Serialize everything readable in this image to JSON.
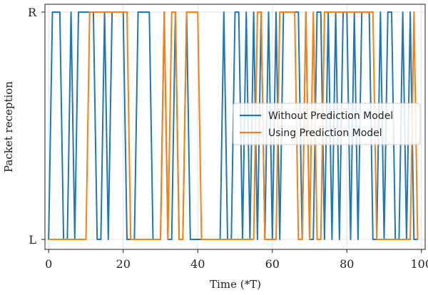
{
  "chart_data": {
    "type": "line",
    "xlabel": "Time (*T)",
    "ylabel": "Packet reception",
    "xlim": [
      -1,
      101
    ],
    "x_ticks": [
      0,
      20,
      40,
      60,
      80,
      100
    ],
    "y_categories": [
      "L",
      "R"
    ],
    "grid": true,
    "legend_position": "center-right",
    "series": [
      {
        "name": "Without Prediction Model",
        "color": "#1f77b4",
        "x": [
          0,
          1,
          2,
          3,
          4,
          5,
          6,
          7,
          8,
          9,
          10,
          11,
          12,
          13,
          14,
          15,
          16,
          17,
          18,
          19,
          20,
          21,
          22,
          23,
          24,
          25,
          26,
          27,
          28,
          29,
          30,
          31,
          32,
          33,
          34,
          35,
          36,
          37,
          38,
          39,
          40,
          41,
          42,
          43,
          44,
          45,
          46,
          47,
          48,
          49,
          50,
          51,
          52,
          53,
          54,
          55,
          56,
          57,
          58,
          59,
          60,
          61,
          62,
          63,
          64,
          65,
          66,
          67,
          68,
          69,
          70,
          71,
          72,
          73,
          74,
          75,
          76,
          77,
          78,
          79,
          80,
          81,
          82,
          83,
          84,
          85,
          86,
          87,
          88,
          89,
          90,
          91,
          92,
          93,
          94,
          95,
          96,
          97,
          98,
          99
        ],
        "values": [
          "L",
          "R",
          "R",
          "R",
          "L",
          "L",
          "R",
          "L",
          "R",
          "R",
          "R",
          "R",
          "R",
          "L",
          "L",
          "R",
          "L",
          "R",
          "R",
          "R",
          "R",
          "L",
          "L",
          "L",
          "R",
          "R",
          "R",
          "R",
          "L",
          "L",
          "L",
          "R",
          "L",
          "L",
          "R",
          "L",
          "L",
          "R",
          "L",
          "L",
          "L",
          "L",
          "L",
          "L",
          "L",
          "L",
          "L",
          "R",
          "L",
          "L",
          "R",
          "R",
          "L",
          "R",
          "L",
          "R",
          "L",
          "R",
          "L",
          "R",
          "L",
          "R",
          "L",
          "R",
          "R",
          "R",
          "R",
          "R",
          "L",
          "R",
          "L",
          "L",
          "R",
          "R",
          "L",
          "R",
          "L",
          "R",
          "L",
          "R",
          "R",
          "L",
          "R",
          "L",
          "R",
          "R",
          "R",
          "L",
          "L",
          "R",
          "L",
          "R",
          "R",
          "L",
          "L",
          "R",
          "L",
          "R",
          "L",
          "L"
        ]
      },
      {
        "name": "Using Prediction Model",
        "color": "#ff7f0e",
        "x": [
          0,
          1,
          2,
          3,
          4,
          5,
          6,
          7,
          8,
          9,
          10,
          11,
          12,
          13,
          14,
          15,
          16,
          17,
          18,
          19,
          20,
          21,
          22,
          23,
          24,
          25,
          26,
          27,
          28,
          29,
          30,
          31,
          32,
          33,
          34,
          35,
          36,
          37,
          38,
          39,
          40,
          41,
          42,
          43,
          44,
          45,
          46,
          47,
          48,
          49,
          50,
          51,
          52,
          53,
          54,
          55,
          56,
          57,
          58,
          59,
          60,
          61,
          62,
          63,
          64,
          65,
          66,
          67,
          68,
          69,
          70,
          71,
          72,
          73,
          74,
          75,
          76,
          77,
          78,
          79,
          80,
          81,
          82,
          83,
          84,
          85,
          86,
          87,
          88,
          89,
          90,
          91,
          92,
          93,
          94,
          95,
          96,
          97,
          98,
          99
        ],
        "values": [
          "L",
          "L",
          "L",
          "L",
          "L",
          "L",
          "L",
          "L",
          "L",
          "L",
          "L",
          "R",
          "R",
          "R",
          "R",
          "R",
          "R",
          "R",
          "R",
          "R",
          "R",
          "R",
          "L",
          "L",
          "L",
          "L",
          "L",
          "L",
          "L",
          "L",
          "L",
          "R",
          "L",
          "R",
          "R",
          "L",
          "L",
          "R",
          "R",
          "R",
          "R",
          "L",
          "L",
          "L",
          "L",
          "L",
          "L",
          "L",
          "L",
          "L",
          "L",
          "L",
          "L",
          "L",
          "L",
          "L",
          "R",
          "R",
          "L",
          "L",
          "L",
          "L",
          "R",
          "R",
          "R",
          "R",
          "R",
          "L",
          "L",
          "R",
          "L",
          "R",
          "L",
          "L",
          "R",
          "R",
          "R",
          "R",
          "R",
          "R",
          "R",
          "R",
          "R",
          "R",
          "R",
          "R",
          "R",
          "R",
          "L",
          "L",
          "L",
          "L",
          "L",
          "L",
          "L",
          "L",
          "L",
          "L",
          "R",
          "L"
        ]
      }
    ]
  }
}
